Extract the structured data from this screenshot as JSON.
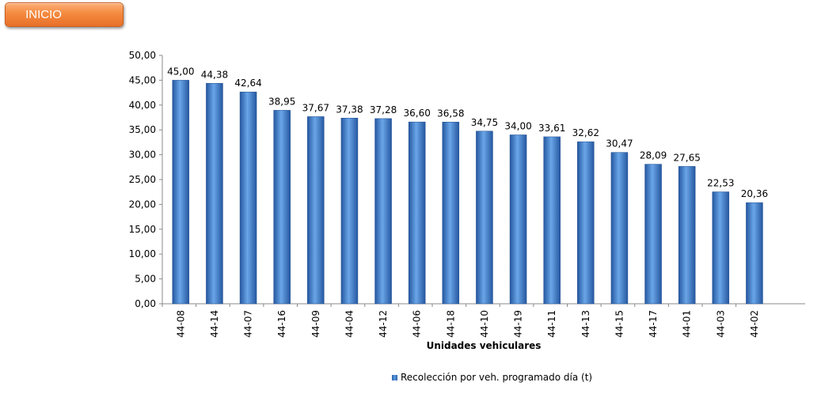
{
  "ui": {
    "inicio_label": "INICIO"
  },
  "colors": {
    "bar_dark": "#2557a0",
    "bar_light": "#6aa6e8",
    "button": "#f58a3f"
  },
  "chart_data": {
    "type": "bar",
    "categories": [
      "44-08",
      "44-14",
      "44-07",
      "44-16",
      "44-09",
      "44-04",
      "44-12",
      "44-06",
      "44-18",
      "44-10",
      "44-19",
      "44-11",
      "44-13",
      "44-15",
      "44-17",
      "44-01",
      "44-03",
      "44-02"
    ],
    "values": [
      45.0,
      44.38,
      42.64,
      38.95,
      37.67,
      37.38,
      37.28,
      36.6,
      36.58,
      34.75,
      34.0,
      33.61,
      32.62,
      30.47,
      28.09,
      27.65,
      22.53,
      20.36
    ],
    "value_labels": [
      "45,00",
      "44,38",
      "42,64",
      "38,95",
      "37,67",
      "37,38",
      "37,28",
      "36,60",
      "36,58",
      "34,75",
      "34,00",
      "33,61",
      "32,62",
      "30,47",
      "28,09",
      "27,65",
      "22,53",
      "20,36"
    ],
    "y_ticks": [
      "0,00",
      "5,00",
      "10,00",
      "15,00",
      "20,00",
      "25,00",
      "30,00",
      "35,00",
      "40,00",
      "45,00",
      "50,00"
    ],
    "ylim": [
      0,
      50
    ],
    "y_step": 5,
    "xlabel": "Unidades vehiculares",
    "ylabel": "",
    "grid": false,
    "legend_position": "bottom",
    "series": [
      {
        "name": "Recolección por veh. programado día (t)"
      }
    ]
  }
}
